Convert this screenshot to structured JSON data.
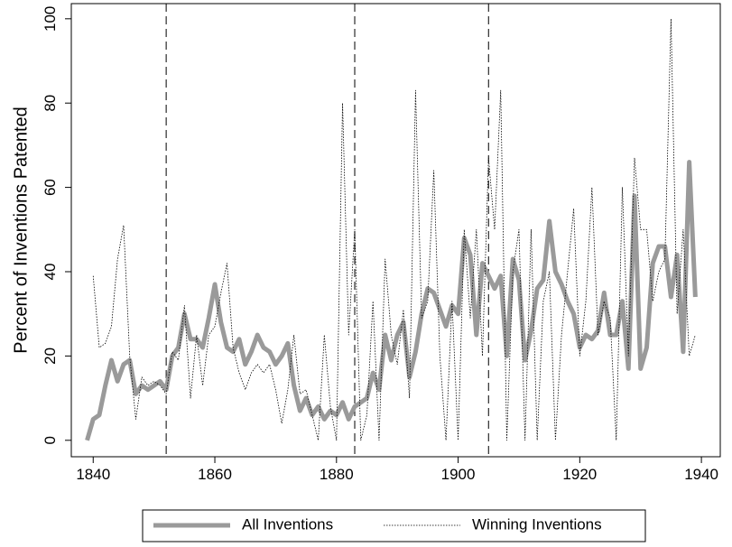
{
  "chart_data": {
    "type": "line",
    "y_label": "Percent of Inventions Patented",
    "x": [
      1839,
      1840,
      1841,
      1842,
      1843,
      1844,
      1845,
      1846,
      1847,
      1848,
      1849,
      1850,
      1851,
      1852,
      1853,
      1854,
      1855,
      1856,
      1857,
      1858,
      1859,
      1860,
      1861,
      1862,
      1863,
      1864,
      1865,
      1866,
      1867,
      1868,
      1869,
      1870,
      1871,
      1872,
      1873,
      1874,
      1875,
      1876,
      1877,
      1878,
      1879,
      1880,
      1881,
      1882,
      1883,
      1884,
      1885,
      1886,
      1887,
      1888,
      1889,
      1890,
      1891,
      1892,
      1893,
      1894,
      1895,
      1896,
      1897,
      1898,
      1899,
      1900,
      1901,
      1902,
      1903,
      1904,
      1905,
      1906,
      1907,
      1908,
      1909,
      1910,
      1911,
      1912,
      1913,
      1914,
      1915,
      1916,
      1917,
      1918,
      1919,
      1920,
      1921,
      1922,
      1923,
      1924,
      1925,
      1926,
      1927,
      1928,
      1929,
      1930,
      1931,
      1932,
      1933,
      1934,
      1935,
      1936,
      1937,
      1938,
      1939
    ],
    "series": [
      {
        "name": "All Inventions",
        "color": "#9a9a9a",
        "width": 5,
        "dash": "none",
        "values": [
          0,
          5,
          6,
          13,
          19,
          14,
          18,
          19,
          11,
          13,
          12,
          13,
          14,
          12,
          20,
          22,
          30,
          24,
          24,
          22,
          29,
          37,
          28,
          22,
          21,
          24,
          18,
          21,
          25,
          22,
          21,
          18,
          20,
          23,
          13,
          7,
          10,
          6,
          8,
          5,
          7,
          6,
          9,
          5,
          8,
          9,
          10,
          16,
          12,
          25,
          19,
          25,
          28,
          15,
          21,
          30,
          36,
          35,
          31,
          27,
          32,
          30,
          48,
          44,
          25,
          42,
          39,
          36,
          39,
          20,
          43,
          38,
          19,
          26,
          36,
          38,
          52,
          40,
          37,
          33,
          30,
          22,
          25,
          24,
          26,
          35,
          25,
          25,
          33,
          17,
          58,
          17,
          22,
          42,
          46,
          46,
          34,
          44,
          21,
          66,
          34
        ]
      },
      {
        "name": "Winning Inventions",
        "color": "#000000",
        "width": 0.8,
        "dash": "1.5 1.5",
        "values": [
          null,
          39,
          22,
          23,
          27,
          43,
          51,
          20,
          5,
          15,
          13,
          14,
          13,
          11,
          21,
          19,
          32,
          10,
          25,
          13,
          25,
          27,
          35,
          42,
          22,
          16,
          12,
          16,
          18,
          16,
          18,
          12,
          4,
          12,
          25,
          11,
          12,
          6,
          0,
          25,
          8,
          0,
          80,
          25,
          50,
          0,
          6,
          33,
          0,
          43,
          25,
          18,
          31,
          10,
          83,
          29,
          33,
          64,
          20,
          0,
          33,
          0,
          50,
          29,
          50,
          20,
          67,
          50,
          83,
          0,
          40,
          50,
          0,
          50,
          0,
          33,
          40,
          0,
          25,
          40,
          55,
          20,
          33,
          60,
          25,
          33,
          29,
          0,
          60,
          20,
          67,
          50,
          50,
          33,
          40,
          43,
          100,
          30,
          50,
          20,
          25
        ]
      }
    ],
    "vlines": [
      1852,
      1883,
      1905
    ],
    "xlim": [
      1836.4,
      1943.1
    ],
    "ylim": [
      -3.9,
      103.6
    ],
    "xticks": [
      1840,
      1860,
      1880,
      1900,
      1920,
      1940
    ],
    "yticks": [
      0,
      20,
      40,
      60,
      80,
      100
    ],
    "grid": false,
    "legend": "bottom"
  }
}
